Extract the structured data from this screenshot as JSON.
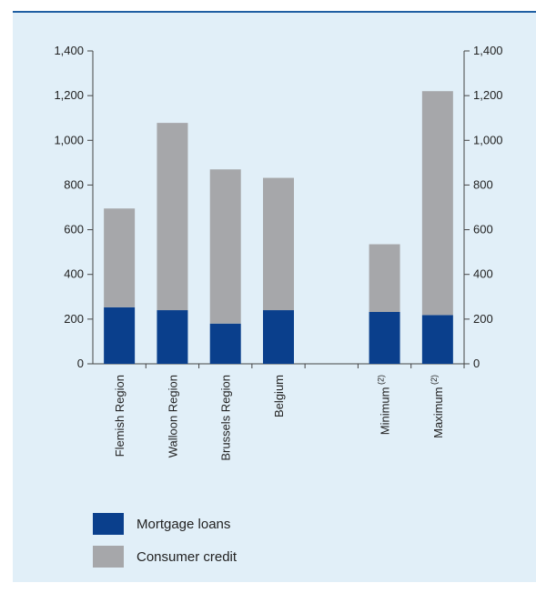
{
  "chart_data": {
    "type": "bar",
    "stacked": true,
    "categories": [
      "Flemish Region",
      "Walloon Region",
      "Brussels Region",
      "Belgium",
      "",
      "Minimum",
      "Maximum"
    ],
    "category_superscripts": [
      "",
      "",
      "",
      "",
      "",
      "(2)",
      "(2)"
    ],
    "series": [
      {
        "name": "Mortgage loans",
        "color": "#0a3f8c",
        "values": [
          253,
          240,
          180,
          240,
          null,
          232,
          218
        ]
      },
      {
        "name": "Consumer credit",
        "color": "#a6a7aa",
        "values": [
          442,
          838,
          690,
          592,
          null,
          303,
          1002
        ]
      }
    ],
    "ylim": [
      0,
      1400
    ],
    "yticks": [
      0,
      200,
      400,
      600,
      800,
      1000,
      1200,
      1400
    ],
    "ytick_labels": [
      "0",
      "200",
      "400",
      "600",
      "800",
      "1,000",
      "1,200",
      "1,400"
    ],
    "y_axes": "left-and-right",
    "grid": false,
    "legend_position": "bottom-left"
  }
}
